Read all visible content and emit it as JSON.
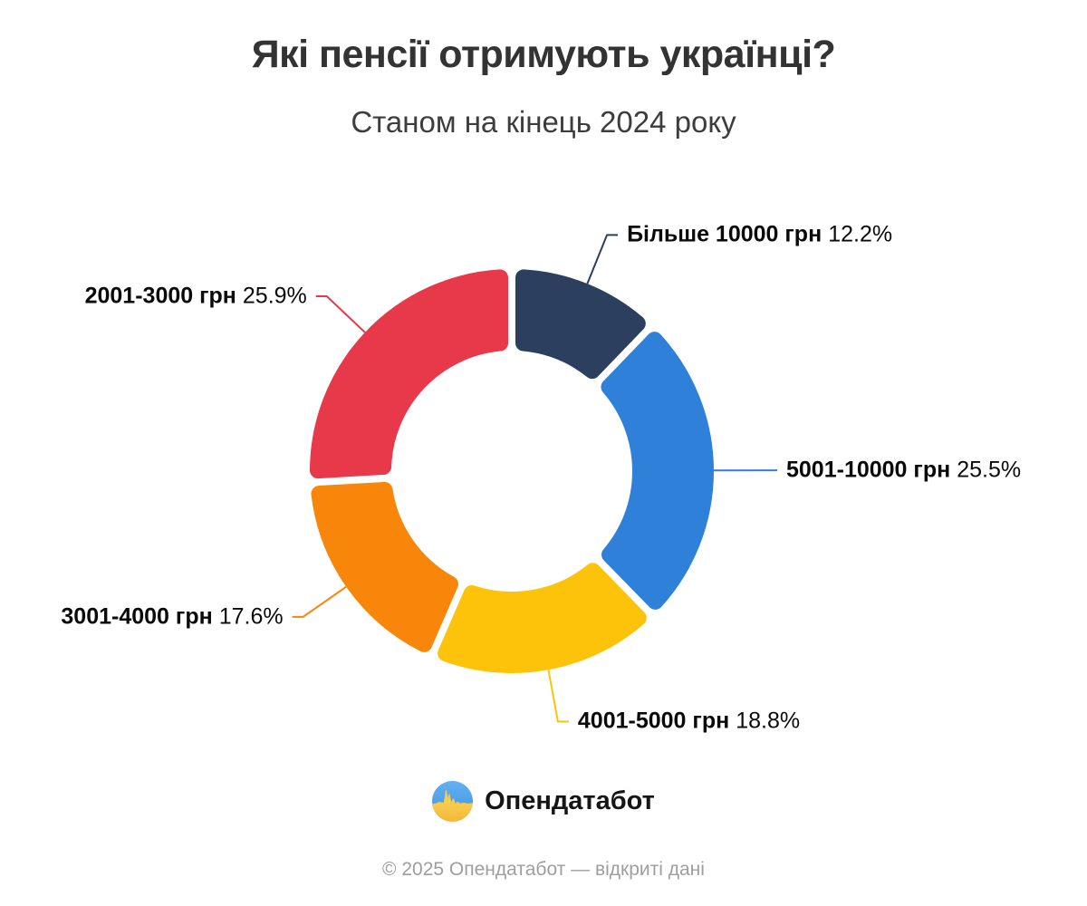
{
  "title": "Які пенсії отримують українці?",
  "subtitle": "Станом на кінець 2024 року",
  "chart_data": {
    "type": "pie",
    "variant": "donut",
    "unit": "%",
    "start_angle_deg": 0,
    "direction": "clockwise",
    "legend_position": "callout-labels",
    "segments": [
      {
        "label": "Більше 10000 грн",
        "value": 12.2,
        "pct_label": "12.2%",
        "color": "#2d3f5e"
      },
      {
        "label": "5001-10000 грн",
        "value": 25.5,
        "pct_label": "25.5%",
        "color": "#2f80d9"
      },
      {
        "label": "4001-5000 грн",
        "value": 18.8,
        "pct_label": "18.8%",
        "color": "#fdc30b"
      },
      {
        "label": "3001-4000 грн",
        "value": 17.6,
        "pct_label": "17.6%",
        "color": "#f8860b"
      },
      {
        "label": "2001-3000 грн",
        "value": 25.9,
        "pct_label": "25.9%",
        "color": "#e8394a"
      }
    ]
  },
  "logo": {
    "icon": "pulse-flag-icon",
    "text": "Опендатабот",
    "flag_blue": "#4da0ee",
    "flag_yellow": "#ffd04a"
  },
  "footer": {
    "copyright": "© 2025 Опендатабот — відкриті дані"
  }
}
